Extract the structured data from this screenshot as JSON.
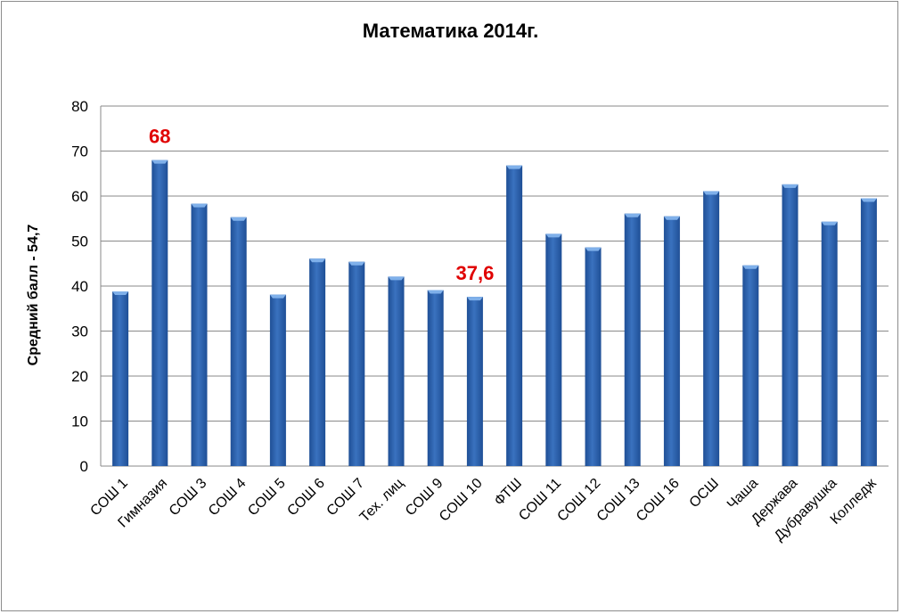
{
  "chart_data": {
    "type": "bar",
    "title": "Математика 2014г.",
    "ylabel": "Средний балл - 54,7",
    "xlabel": "",
    "ylim": [
      0,
      80
    ],
    "yticks": [
      0,
      10,
      20,
      30,
      40,
      50,
      60,
      70,
      80
    ],
    "grid": true,
    "legend": "none",
    "bar_color": "#3a72bf",
    "bar_color_dark": "#1f4f96",
    "bar_color_light": "#7fb0ea",
    "annotation_color": "#e00000",
    "categories": [
      "СОШ 1",
      "Гимназия",
      "СОШ 3",
      "СОШ 4",
      "СОШ 5",
      "СОШ 6",
      "СОШ 7",
      "Тех. лиц",
      "СОШ 9",
      "СОШ 10",
      "ФТШ",
      "СОШ 11",
      "СОШ 12",
      "СОШ 13",
      "СОШ 16",
      "ОСШ",
      "Чаша",
      "Держава",
      "Дубравушка",
      "Колледж"
    ],
    "values": [
      38.8,
      68,
      58.3,
      55.3,
      38.1,
      46.1,
      45.4,
      42.1,
      39.1,
      37.6,
      66.8,
      51.6,
      48.6,
      56.1,
      55.5,
      61.1,
      44.6,
      62.6,
      54.3,
      59.5
    ],
    "data_labels": [
      {
        "category": "Гимназия",
        "text": "68"
      },
      {
        "category": "СОШ 10",
        "text": "37,6"
      }
    ]
  }
}
